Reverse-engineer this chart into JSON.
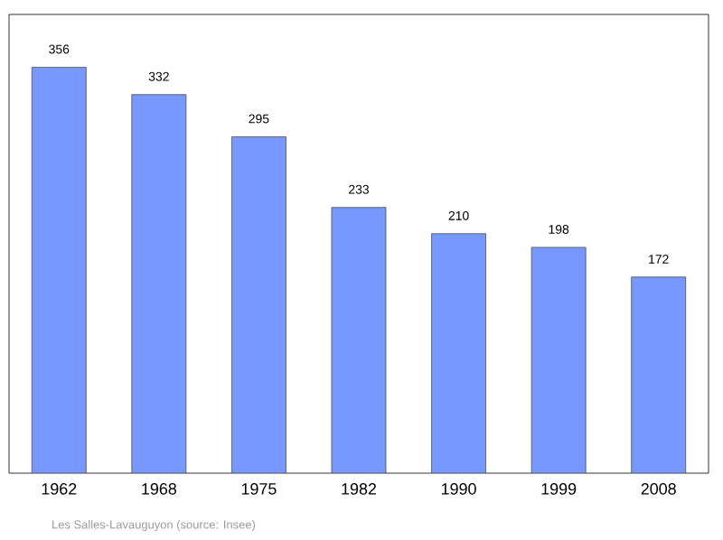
{
  "chart_data": {
    "type": "bar",
    "categories": [
      "1962",
      "1968",
      "1975",
      "1982",
      "1990",
      "1999",
      "2008"
    ],
    "values": [
      356,
      332,
      295,
      233,
      210,
      198,
      172
    ],
    "color": "#7799ff",
    "data_labels": true,
    "annotations": [
      "Les Salles-Lavauguyon    (source: Insee)"
    ]
  }
}
